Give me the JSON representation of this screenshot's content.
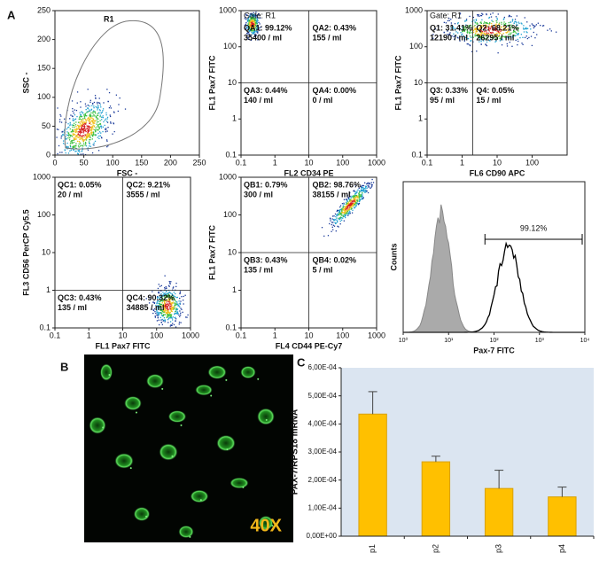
{
  "figure": {
    "panel_labels": [
      "A",
      "B",
      "C"
    ],
    "magnification": "40X"
  },
  "chart_data": [
    {
      "type": "density",
      "xlabel": "FSC -",
      "ylabel": "SSC -",
      "gate_label": "R1",
      "xlim": [
        0,
        250
      ],
      "ylim": [
        0,
        250
      ],
      "xticks": [
        0,
        50,
        100,
        150,
        200,
        250
      ],
      "yticks": [
        0,
        50,
        100,
        150,
        200,
        250
      ]
    },
    {
      "type": "quadrant",
      "log_scale": true,
      "xlabel": "FL2  CD34 PE",
      "ylabel": "FL1  Pax7 FITC",
      "gate_label": "Gate: R1",
      "xlim": [
        0.1,
        1000
      ],
      "ylim": [
        0.1,
        1000
      ],
      "xticks": [
        0.1,
        1,
        10,
        100,
        1000
      ],
      "yticks": [
        0.1,
        1,
        10,
        100,
        1000
      ],
      "quadrant_x": 10,
      "quadrant_y": 10,
      "quadrants": [
        {
          "label": "QA1: 99.12%",
          "count": "35400 / ml"
        },
        {
          "label": "QA2: 0.43%",
          "count": "155 / ml"
        },
        {
          "label": "QA3: 0.44%",
          "count": "140 / ml"
        },
        {
          "label": "QA4: 0.00%",
          "count": "0 / ml"
        }
      ]
    },
    {
      "type": "quadrant",
      "log_scale": true,
      "xlabel": "FL6  CD90 APC",
      "ylabel": "FL1  Pax7 FITC",
      "gate_label": "Gate: R1",
      "xlim": [
        0.1,
        1000
      ],
      "ylim": [
        0.1,
        1000
      ],
      "xticks": [
        0.1,
        1,
        10,
        100
      ],
      "yticks": [
        0.1,
        1,
        10,
        100,
        1000
      ],
      "quadrant_x": 2,
      "quadrant_y": 10,
      "quadrants": [
        {
          "label": "Q1: 31.41%",
          "count": "12190 / ml"
        },
        {
          "label": "Q2: 68.21%",
          "count": "26295 / ml"
        },
        {
          "label": "Q3: 0.33%",
          "count": "95 / ml"
        },
        {
          "label": "Q4: 0.05%",
          "count": "15 / ml"
        }
      ]
    },
    {
      "type": "quadrant",
      "log_scale": true,
      "xlabel": "FL1  Pax7 FITC",
      "ylabel": "FL3  CD56 PerCP Cy5.5",
      "xlim": [
        0.1,
        1000
      ],
      "ylim": [
        0.1,
        1000
      ],
      "xticks": [
        0.1,
        1,
        10,
        100,
        1000
      ],
      "yticks": [
        0.1,
        1,
        10,
        100,
        1000
      ],
      "quadrant_x": 10,
      "quadrant_y": 1,
      "quadrants": [
        {
          "label": "QC1: 0.05%",
          "count": "20 / ml"
        },
        {
          "label": "QC2: 9.21%",
          "count": "3555 / ml"
        },
        {
          "label": "QC3: 0.43%",
          "count": "135 / ml"
        },
        {
          "label": "QC4: 90.32%",
          "count": "34885 / ml"
        }
      ]
    },
    {
      "type": "quadrant",
      "log_scale": true,
      "xlabel": "FL4  CD44 PE-Cy7",
      "ylabel": "FL1  Pax7 FITC",
      "xlim": [
        0.1,
        1000
      ],
      "ylim": [
        0.1,
        1000
      ],
      "xticks": [
        0.1,
        1,
        10,
        100,
        1000
      ],
      "yticks": [
        0.1,
        1,
        10,
        100,
        1000
      ],
      "quadrant_x": 10,
      "quadrant_y": 10,
      "quadrants": [
        {
          "label": "QB1: 0.79%",
          "count": "300 / ml"
        },
        {
          "label": "QB2: 98.76%",
          "count": "38155 / ml"
        },
        {
          "label": "QB3: 0.43%",
          "count": "135 / ml"
        },
        {
          "label": "QB4: 0.02%",
          "count": "5 / ml"
        }
      ]
    },
    {
      "type": "histogram",
      "log_scale": true,
      "xlabel": "Pax-7 FITC",
      "ylabel": "Counts",
      "marker_label": "99.12%",
      "xlim": [
        1,
        10000
      ],
      "xticks": [
        {
          "value": 1,
          "label": "10⁰"
        },
        {
          "value": 10,
          "label": "10¹"
        },
        {
          "value": 100,
          "label": "10²"
        },
        {
          "value": 1000,
          "label": "10³"
        },
        {
          "value": 10000,
          "label": "10⁴"
        }
      ]
    },
    {
      "type": "bar",
      "ylabel": "PAX-7/RPS18 mRNA",
      "color": "#ffc000",
      "background": "#dbe5f1",
      "categories": [
        "p1",
        "p2",
        "p3",
        "p4"
      ],
      "values": [
        0.000435,
        0.000265,
        0.00017,
        0.00014
      ],
      "errors": [
        8e-05,
        2e-05,
        6.5e-05,
        3.5e-05
      ],
      "ylim": [
        0,
        0.0006
      ],
      "yticks": [
        {
          "value": 0,
          "label": "0,00E+00"
        },
        {
          "value": 0.0001,
          "label": "1,00E-04"
        },
        {
          "value": 0.0002,
          "label": "2,00E-04"
        },
        {
          "value": 0.0003,
          "label": "3,00E-04"
        },
        {
          "value": 0.0004,
          "label": "4,00E-04"
        },
        {
          "value": 0.0005,
          "label": "5,00E-04"
        },
        {
          "value": 0.0006,
          "label": "6,00E-04"
        }
      ]
    }
  ]
}
